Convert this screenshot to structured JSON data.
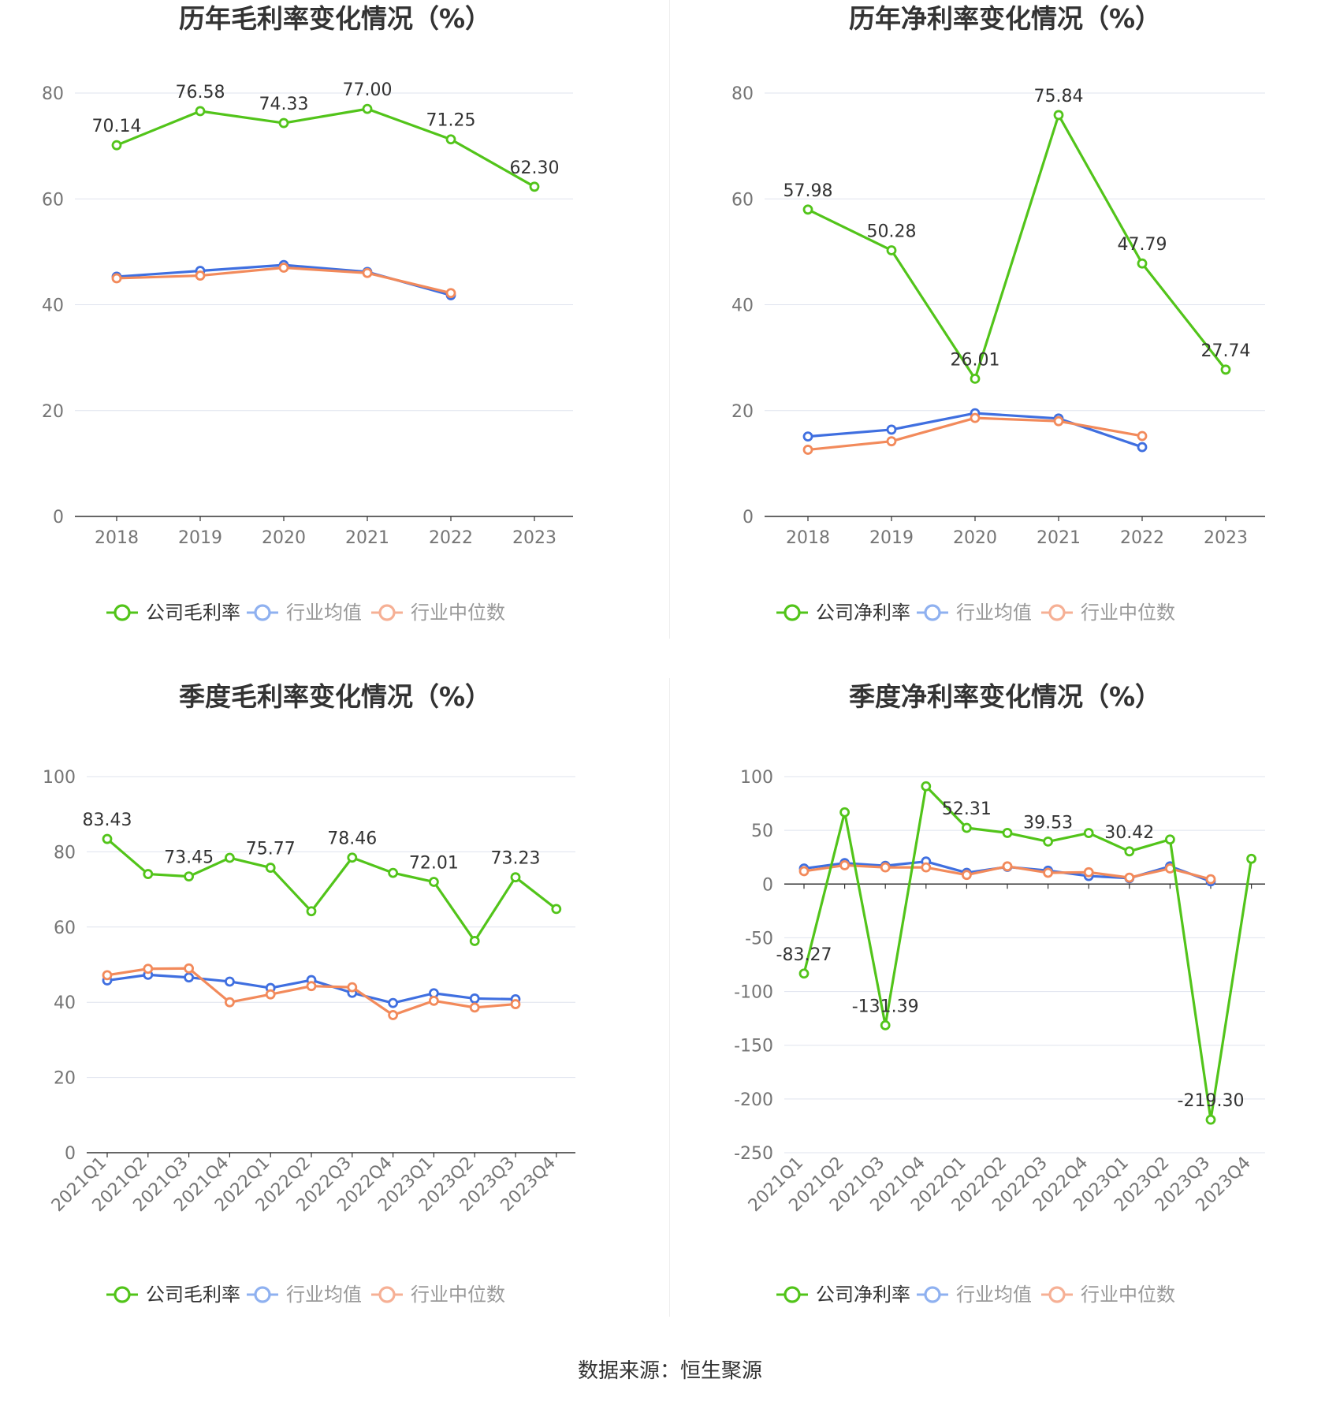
{
  "source": "数据来源：恒生聚源",
  "colors": {
    "company": "#52c41a",
    "avg": "#3f6fe0",
    "median": "#f28a5b",
    "grid": "#dfe3ee",
    "axis": "#333333"
  },
  "chart_data": [
    {
      "type": "line",
      "title": "历年毛利率变化情况（%）",
      "categories": [
        "2018",
        "2019",
        "2020",
        "2021",
        "2022",
        "2023"
      ],
      "yticks": [
        "0",
        "20",
        "40",
        "60",
        "80"
      ],
      "ylim": [
        0,
        80
      ],
      "series": [
        {
          "name": "公司毛利率",
          "values": [
            70.14,
            76.58,
            74.33,
            77.0,
            71.25,
            62.3
          ],
          "labels": [
            "70.14",
            "76.58",
            "74.33",
            "77.00",
            "71.25",
            "62.30"
          ]
        },
        {
          "name": "行业均值",
          "values": [
            45.3,
            46.4,
            47.5,
            46.2,
            41.8,
            null
          ]
        },
        {
          "name": "行业中位数",
          "values": [
            45.0,
            45.5,
            47.0,
            46.0,
            42.2,
            null
          ]
        }
      ]
    },
    {
      "type": "line",
      "title": "历年净利率变化情况（%）",
      "categories": [
        "2018",
        "2019",
        "2020",
        "2021",
        "2022",
        "2023"
      ],
      "yticks": [
        "0",
        "20",
        "40",
        "60",
        "80"
      ],
      "ylim": [
        0,
        80
      ],
      "series": [
        {
          "name": "公司净利率",
          "values": [
            57.98,
            50.28,
            26.01,
            75.84,
            47.79,
            27.74
          ],
          "labels": [
            "57.98",
            "50.28",
            "26.01",
            "75.84",
            "47.79",
            "27.74"
          ]
        },
        {
          "name": "行业均值",
          "values": [
            15.1,
            16.4,
            19.5,
            18.5,
            13.1,
            null
          ]
        },
        {
          "name": "行业中位数",
          "values": [
            12.6,
            14.2,
            18.6,
            18.0,
            15.2,
            null
          ]
        }
      ]
    },
    {
      "type": "line",
      "title": "季度毛利率变化情况（%）",
      "categories": [
        "2021Q1",
        "2021Q2",
        "2021Q3",
        "2021Q4",
        "2022Q1",
        "2022Q2",
        "2022Q3",
        "2022Q4",
        "2023Q1",
        "2023Q2",
        "2023Q3",
        "2023Q4"
      ],
      "yticks": [
        "0",
        "20",
        "40",
        "60",
        "80",
        "100"
      ],
      "ylim": [
        0,
        100
      ],
      "series": [
        {
          "name": "公司毛利率",
          "values": [
            83.43,
            74.1,
            73.45,
            78.4,
            75.77,
            64.2,
            78.46,
            74.4,
            72.01,
            56.3,
            73.23,
            64.8
          ],
          "labels": [
            "83.43",
            "",
            "73.45",
            "",
            "75.77",
            "",
            "78.46",
            "",
            "72.01",
            "",
            "73.23",
            ""
          ]
        },
        {
          "name": "行业均值",
          "values": [
            45.8,
            47.3,
            46.6,
            45.5,
            43.8,
            45.9,
            42.5,
            39.8,
            42.4,
            41.0,
            40.8,
            null
          ]
        },
        {
          "name": "行业中位数",
          "values": [
            47.2,
            48.9,
            49.0,
            40.0,
            42.1,
            44.3,
            44.0,
            36.6,
            40.4,
            38.6,
            39.5,
            null
          ]
        }
      ]
    },
    {
      "type": "line",
      "title": "季度净利率变化情况（%）",
      "categories": [
        "2021Q1",
        "2021Q2",
        "2021Q3",
        "2021Q4",
        "2022Q1",
        "2022Q2",
        "2022Q3",
        "2022Q4",
        "2023Q1",
        "2023Q2",
        "2023Q3",
        "2023Q4"
      ],
      "yticks": [
        "-250",
        "-200",
        "-150",
        "-100",
        "-50",
        "0",
        "50",
        "100"
      ],
      "ylim": [
        -250,
        100
      ],
      "series": [
        {
          "name": "公司净利率",
          "values": [
            -83.27,
            66.8,
            -131.39,
            91.0,
            52.31,
            47.6,
            39.53,
            47.5,
            30.42,
            41.5,
            -219.3,
            23.5
          ],
          "labels": [
            "-83.27",
            "",
            "-131.39",
            "",
            "52.31",
            "",
            "39.53",
            "",
            "30.42",
            "",
            "-219.30",
            ""
          ]
        },
        {
          "name": "行业均值",
          "values": [
            14.5,
            19.5,
            17.0,
            21.0,
            10.5,
            16.0,
            12.5,
            7.5,
            5.5,
            16.5,
            2.5,
            null
          ]
        },
        {
          "name": "行业中位数",
          "values": [
            12.0,
            17.5,
            15.5,
            15.5,
            8.5,
            16.5,
            10.5,
            11.0,
            6.0,
            14.5,
            4.5,
            null
          ]
        }
      ]
    }
  ]
}
